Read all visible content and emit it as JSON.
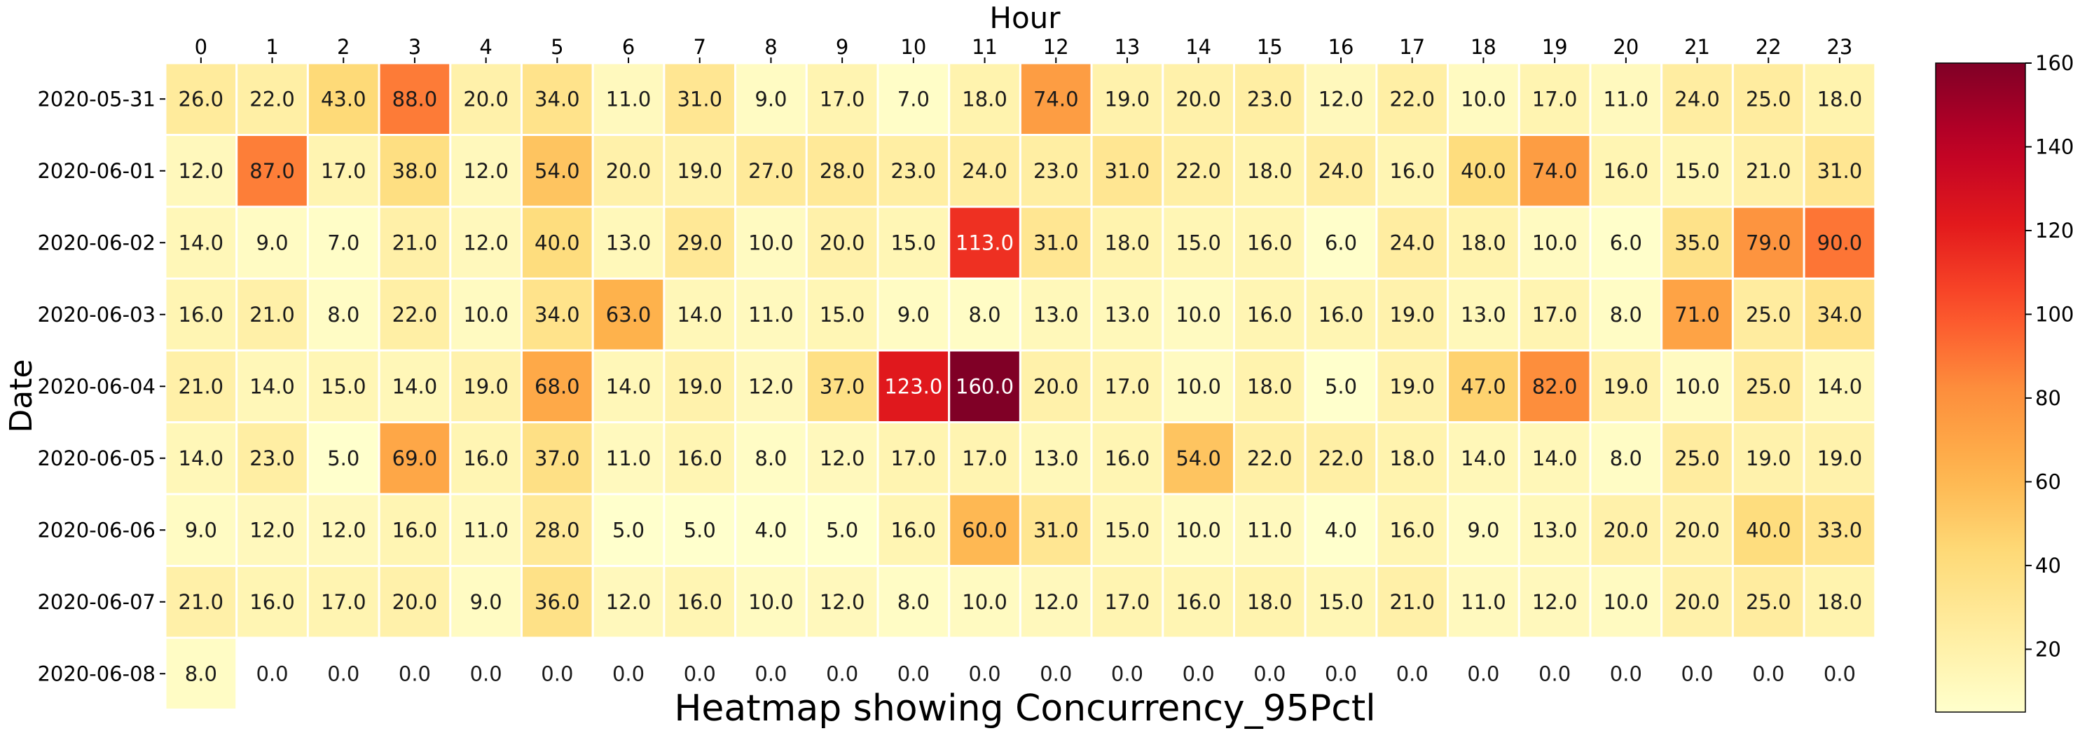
{
  "chart_data": {
    "type": "heatmap",
    "title": "Heatmap showing Concurrency_95Pctl",
    "xlabel": "Hour",
    "ylabel": "Date",
    "x_categories": [
      "0",
      "1",
      "2",
      "3",
      "4",
      "5",
      "6",
      "7",
      "8",
      "9",
      "10",
      "11",
      "12",
      "13",
      "14",
      "15",
      "16",
      "17",
      "18",
      "19",
      "20",
      "21",
      "22",
      "23"
    ],
    "y_categories": [
      "2020-05-31",
      "2020-06-01",
      "2020-06-02",
      "2020-06-03",
      "2020-06-04",
      "2020-06-05",
      "2020-06-06",
      "2020-06-07",
      "2020-06-08"
    ],
    "values": [
      [
        26,
        22,
        43,
        88,
        20,
        34,
        11,
        31,
        9,
        17,
        7,
        18,
        74,
        19,
        20,
        23,
        12,
        22,
        10,
        17,
        11,
        24,
        25,
        18
      ],
      [
        12,
        87,
        17,
        38,
        12,
        54,
        20,
        19,
        27,
        28,
        23,
        24,
        23,
        31,
        22,
        18,
        24,
        16,
        40,
        74,
        16,
        15,
        21,
        31
      ],
      [
        14,
        9,
        7,
        21,
        12,
        40,
        13,
        29,
        10,
        20,
        15,
        113,
        31,
        18,
        15,
        16,
        6,
        24,
        18,
        10,
        6,
        35,
        79,
        90
      ],
      [
        16,
        21,
        8,
        22,
        10,
        34,
        63,
        14,
        11,
        15,
        9,
        8,
        13,
        13,
        10,
        16,
        16,
        19,
        13,
        17,
        8,
        71,
        25,
        34
      ],
      [
        21,
        14,
        15,
        14,
        19,
        68,
        14,
        19,
        12,
        37,
        123,
        160,
        20,
        17,
        10,
        18,
        5,
        19,
        47,
        82,
        19,
        10,
        25,
        14
      ],
      [
        14,
        23,
        5,
        69,
        16,
        37,
        11,
        16,
        8,
        12,
        17,
        17,
        13,
        16,
        54,
        22,
        22,
        18,
        14,
        14,
        8,
        25,
        19,
        19
      ],
      [
        9,
        12,
        12,
        16,
        11,
        28,
        5,
        5,
        4,
        5,
        16,
        60,
        31,
        15,
        10,
        11,
        4,
        16,
        9,
        13,
        20,
        20,
        40,
        33
      ],
      [
        21,
        16,
        17,
        20,
        9,
        36,
        12,
        16,
        10,
        12,
        8,
        10,
        12,
        17,
        16,
        18,
        15,
        21,
        11,
        12,
        10,
        20,
        25,
        18
      ],
      [
        8,
        0,
        0,
        0,
        0,
        0,
        0,
        0,
        0,
        0,
        0,
        0,
        0,
        0,
        0,
        0,
        0,
        0,
        0,
        0,
        0,
        0,
        0,
        0
      ]
    ],
    "masked_zero_cells": true,
    "cell_label_format": "one-decimal",
    "colorbar": {
      "colormap": "YlOrRd",
      "range": [
        5,
        160
      ],
      "ticks": [
        20,
        40,
        60,
        80,
        100,
        120,
        140,
        160
      ],
      "position": "right"
    },
    "x_axis_position": "top",
    "grid": false
  }
}
